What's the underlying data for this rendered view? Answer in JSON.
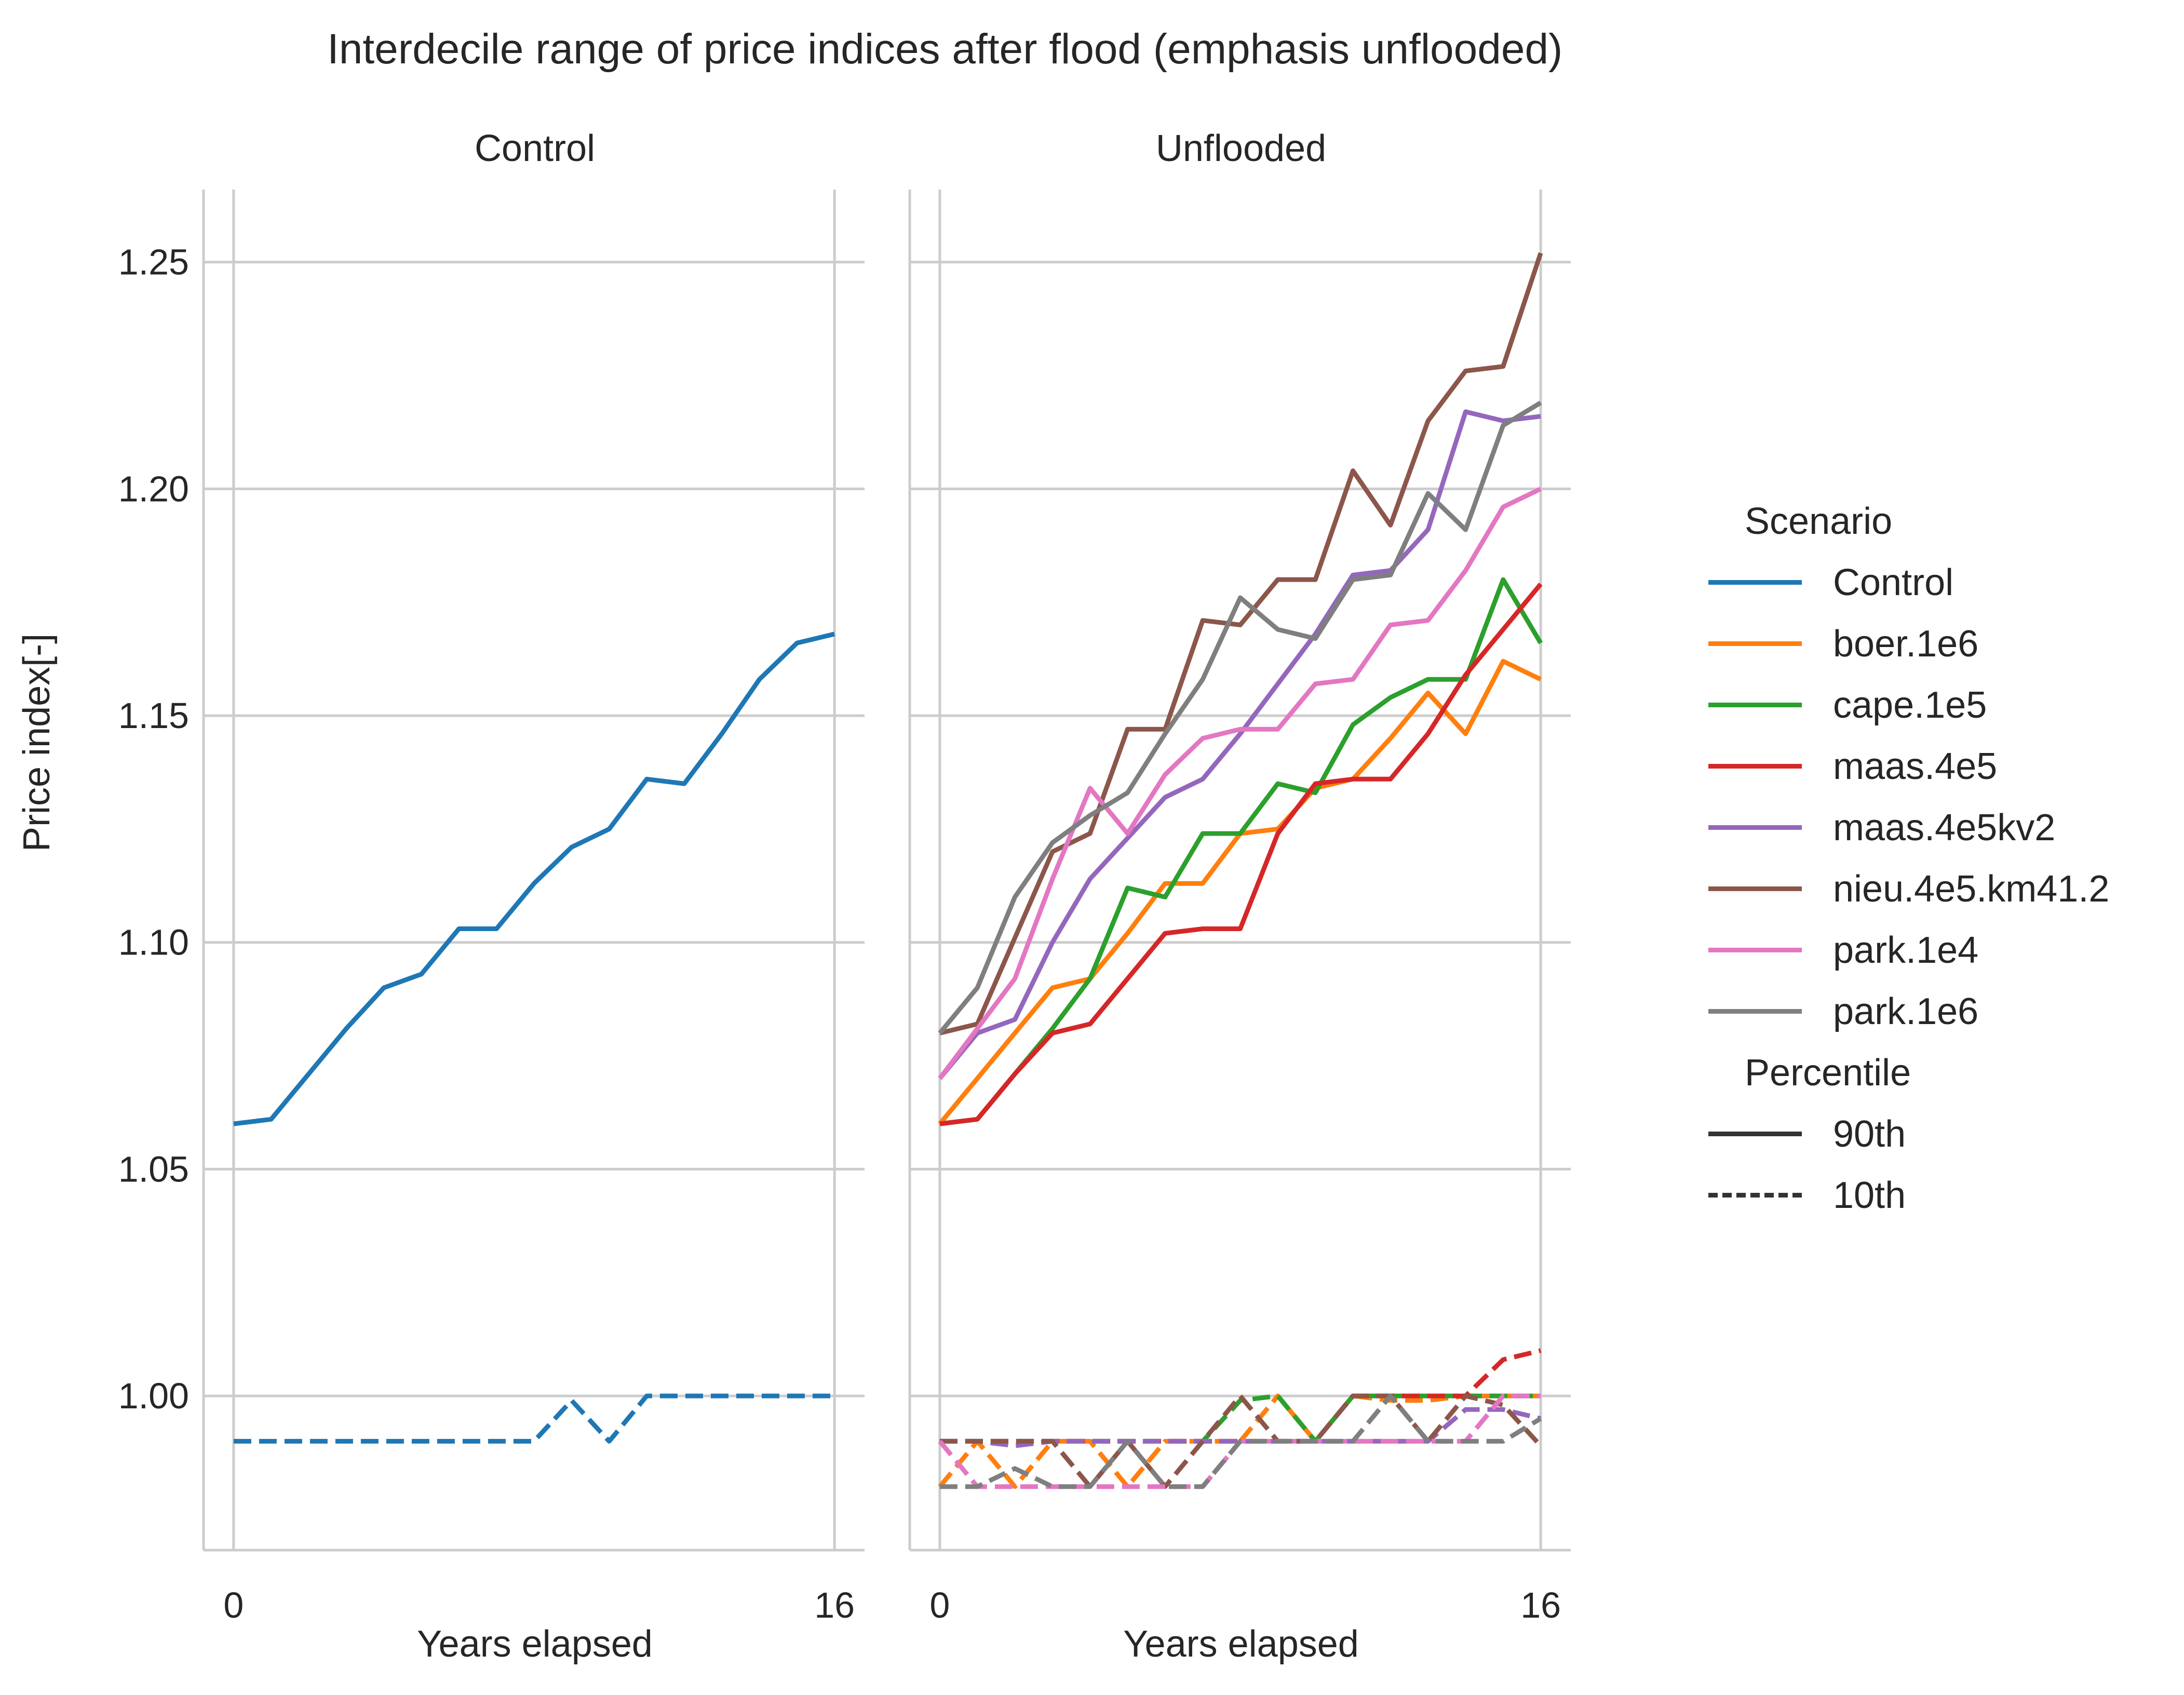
{
  "figure": {
    "title": "Interdecile range of price indices after flood (emphasis unflooded)",
    "ylabel": "Price index[-]",
    "xlabel": "Years elapsed"
  },
  "legend": {
    "scenario_title": "Scenario",
    "scenarios": [
      {
        "name": "Control",
        "color": "#1f77b4"
      },
      {
        "name": "boer.1e6",
        "color": "#ff7f0e"
      },
      {
        "name": "cape.1e5",
        "color": "#2ca02c"
      },
      {
        "name": "maas.4e5",
        "color": "#d62728"
      },
      {
        "name": "maas.4e5kv2",
        "color": "#9467bd"
      },
      {
        "name": "nieu.4e5.km41.2",
        "color": "#8c564b"
      },
      {
        "name": "park.1e4",
        "color": "#e377c2"
      },
      {
        "name": "park.1e6",
        "color": "#7f7f7f"
      }
    ],
    "percentile_title": "Percentile",
    "percentiles": [
      {
        "name": "90th",
        "style": "solid"
      },
      {
        "name": "10th",
        "style": "dashed"
      }
    ]
  },
  "chart_data": [
    {
      "type": "line",
      "title": "Control",
      "xlabel": "Years elapsed",
      "ylabel": "Price index[-]",
      "xlim": [
        -0.8,
        16.8
      ],
      "ylim": [
        0.966,
        1.266
      ],
      "xticks": [
        0,
        16
      ],
      "yticks": [
        1.0,
        1.05,
        1.1,
        1.15,
        1.2,
        1.25
      ],
      "ytick_labels": [
        "1.00",
        "1.05",
        "1.10",
        "1.15",
        "1.20",
        "1.25"
      ],
      "grid": true,
      "x": [
        0,
        1,
        2,
        3,
        4,
        5,
        6,
        7,
        8,
        9,
        10,
        11,
        12,
        13,
        14,
        15,
        16
      ],
      "series": [
        {
          "name": "Control",
          "percentile": "90th",
          "color": "#1f77b4",
          "dash": false,
          "values": [
            1.06,
            1.061,
            1.071,
            1.081,
            1.09,
            1.093,
            1.103,
            1.103,
            1.113,
            1.121,
            1.125,
            1.136,
            1.135,
            1.146,
            1.158,
            1.166,
            1.168
          ]
        },
        {
          "name": "Control",
          "percentile": "10th",
          "color": "#1f77b4",
          "dash": true,
          "values": [
            0.99,
            0.99,
            0.99,
            0.99,
            0.99,
            0.99,
            0.99,
            0.99,
            0.99,
            0.999,
            0.99,
            1.0,
            1.0,
            1.0,
            1.0,
            1.0,
            1.0
          ]
        }
      ]
    },
    {
      "type": "line",
      "title": "Unflooded",
      "xlabel": "Years elapsed",
      "ylabel": "",
      "xlim": [
        -0.8,
        16.8
      ],
      "ylim": [
        0.966,
        1.266
      ],
      "xticks": [
        0,
        16
      ],
      "yticks": [
        1.0,
        1.05,
        1.1,
        1.15,
        1.2,
        1.25
      ],
      "grid": true,
      "x": [
        0,
        1,
        2,
        3,
        4,
        5,
        6,
        7,
        8,
        9,
        10,
        11,
        12,
        13,
        14,
        15,
        16
      ],
      "series": [
        {
          "name": "boer.1e6",
          "percentile": "90th",
          "color": "#ff7f0e",
          "dash": false,
          "values": [
            1.06,
            1.07,
            1.08,
            1.09,
            1.092,
            1.102,
            1.113,
            1.113,
            1.124,
            1.125,
            1.134,
            1.136,
            1.145,
            1.155,
            1.146,
            1.162,
            1.158
          ]
        },
        {
          "name": "cape.1e5",
          "percentile": "90th",
          "color": "#2ca02c",
          "dash": false,
          "values": [
            1.06,
            1.061,
            1.071,
            1.081,
            1.092,
            1.112,
            1.11,
            1.124,
            1.124,
            1.135,
            1.133,
            1.148,
            1.154,
            1.158,
            1.158,
            1.18,
            1.166
          ]
        },
        {
          "name": "maas.4e5",
          "percentile": "90th",
          "color": "#d62728",
          "dash": false,
          "values": [
            1.06,
            1.061,
            1.071,
            1.08,
            1.082,
            1.092,
            1.102,
            1.103,
            1.103,
            1.124,
            1.135,
            1.136,
            1.136,
            1.146,
            1.159,
            1.169,
            1.179
          ]
        },
        {
          "name": "maas.4e5kv2",
          "percentile": "90th",
          "color": "#9467bd",
          "dash": false,
          "values": [
            1.07,
            1.08,
            1.083,
            1.1,
            1.114,
            1.123,
            1.132,
            1.136,
            1.146,
            1.157,
            1.168,
            1.181,
            1.182,
            1.191,
            1.217,
            1.215,
            1.216
          ]
        },
        {
          "name": "nieu.4e5.km41.2",
          "percentile": "90th",
          "color": "#8c564b",
          "dash": false,
          "values": [
            1.08,
            1.082,
            1.101,
            1.12,
            1.124,
            1.147,
            1.147,
            1.171,
            1.17,
            1.18,
            1.18,
            1.204,
            1.192,
            1.215,
            1.226,
            1.227,
            1.252
          ]
        },
        {
          "name": "park.1e4",
          "percentile": "90th",
          "color": "#e377c2",
          "dash": false,
          "values": [
            1.07,
            1.081,
            1.092,
            1.114,
            1.134,
            1.124,
            1.137,
            1.145,
            1.147,
            1.147,
            1.157,
            1.158,
            1.17,
            1.171,
            1.182,
            1.196,
            1.2
          ]
        },
        {
          "name": "park.1e6",
          "percentile": "90th",
          "color": "#7f7f7f",
          "dash": false,
          "values": [
            1.08,
            1.09,
            1.11,
            1.122,
            1.128,
            1.133,
            1.146,
            1.158,
            1.176,
            1.169,
            1.167,
            1.18,
            1.181,
            1.199,
            1.191,
            1.214,
            1.219
          ]
        },
        {
          "name": "boer.1e6",
          "percentile": "10th",
          "color": "#ff7f0e",
          "dash": true,
          "values": [
            0.98,
            0.99,
            0.98,
            0.99,
            0.99,
            0.98,
            0.99,
            0.99,
            0.99,
            1.0,
            0.99,
            1.0,
            0.999,
            0.999,
            1.0,
            1.0,
            1.0
          ]
        },
        {
          "name": "cape.1e5",
          "percentile": "10th",
          "color": "#2ca02c",
          "dash": true,
          "values": [
            0.99,
            0.99,
            0.99,
            0.99,
            0.99,
            0.99,
            0.99,
            0.99,
            0.999,
            1.0,
            0.99,
            1.0,
            1.0,
            1.0,
            1.0,
            1.0,
            1.0
          ]
        },
        {
          "name": "maas.4e5",
          "percentile": "10th",
          "color": "#d62728",
          "dash": true,
          "values": [
            0.99,
            0.99,
            0.99,
            0.99,
            0.99,
            0.99,
            0.99,
            0.99,
            0.99,
            0.99,
            0.99,
            1.0,
            1.0,
            1.0,
            1.0,
            1.008,
            1.01
          ]
        },
        {
          "name": "maas.4e5kv2",
          "percentile": "10th",
          "color": "#9467bd",
          "dash": true,
          "values": [
            0.99,
            0.99,
            0.989,
            0.99,
            0.99,
            0.99,
            0.99,
            0.99,
            0.99,
            0.99,
            0.99,
            0.99,
            0.99,
            0.99,
            0.997,
            0.997,
            0.995
          ]
        },
        {
          "name": "nieu.4e5.km41.2",
          "percentile": "10th",
          "color": "#8c564b",
          "dash": true,
          "values": [
            0.99,
            0.99,
            0.99,
            0.99,
            0.98,
            0.99,
            0.98,
            0.99,
            1.0,
            0.99,
            0.99,
            1.0,
            1.0,
            0.99,
            1.0,
            0.998,
            0.989
          ]
        },
        {
          "name": "park.1e4",
          "percentile": "10th",
          "color": "#e377c2",
          "dash": true,
          "values": [
            0.99,
            0.98,
            0.98,
            0.98,
            0.98,
            0.98,
            0.98,
            0.98,
            0.99,
            0.99,
            0.99,
            0.99,
            0.99,
            0.99,
            0.99,
            1.0,
            1.0
          ]
        },
        {
          "name": "park.1e6",
          "percentile": "10th",
          "color": "#7f7f7f",
          "dash": true,
          "values": [
            0.98,
            0.98,
            0.984,
            0.98,
            0.98,
            0.99,
            0.98,
            0.98,
            0.99,
            0.99,
            0.99,
            0.99,
            1.0,
            0.99,
            0.99,
            0.99,
            0.995
          ]
        }
      ]
    }
  ]
}
